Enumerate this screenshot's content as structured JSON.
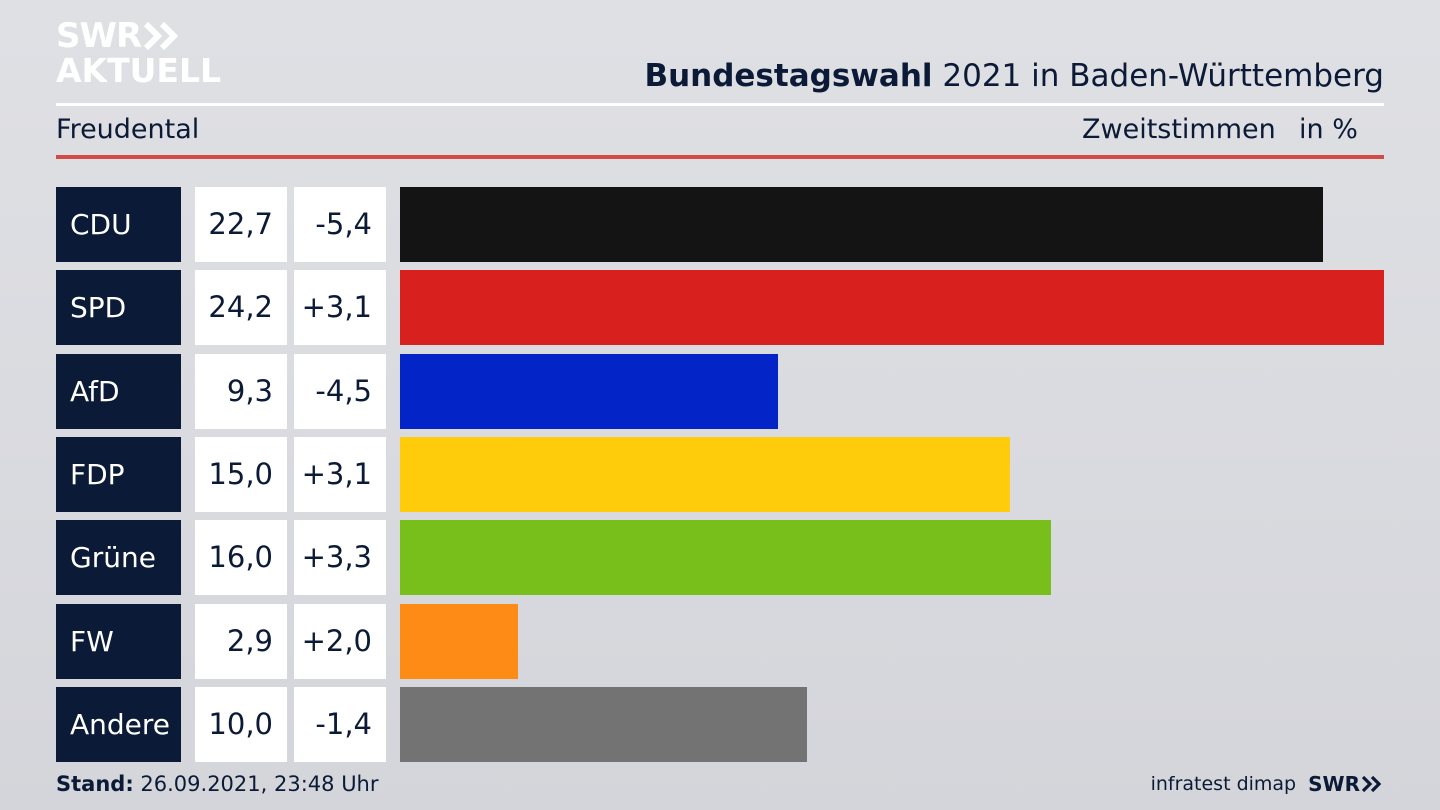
{
  "logo": {
    "line1": "SWR",
    "line2": "AKTUELL",
    "icon": "double-chevron-right-icon"
  },
  "header": {
    "title_bold": "Bundestagswahl",
    "title_rest": "2021 in Baden-Württemberg",
    "region": "Freudental",
    "vote_type": "Zweitstimmen",
    "unit": "in %"
  },
  "colors": {
    "navy": "#0b1a36",
    "accent_red_rule": "#d24b46"
  },
  "chart_data": {
    "type": "bar",
    "orientation": "horizontal",
    "categories": [
      "CDU",
      "SPD",
      "AfD",
      "FDP",
      "Grüne",
      "FW",
      "Andere"
    ],
    "values": [
      22.7,
      24.2,
      9.3,
      15.0,
      16.0,
      2.9,
      10.0
    ],
    "value_labels": [
      "22,7",
      "24,2",
      "9,3",
      "15,0",
      "16,0",
      "2,9",
      "10,0"
    ],
    "diff_labels": [
      "-5,4",
      "+3,1",
      "-4,5",
      "+3,1",
      "+3,3",
      "+2,0",
      "-1,4"
    ],
    "diffs": [
      -5.4,
      3.1,
      -4.5,
      3.1,
      3.3,
      2.0,
      -1.4
    ],
    "colors": [
      "#141414",
      "#d8201f",
      "#0324c6",
      "#fecc0a",
      "#79bf1b",
      "#fd8b15",
      "#737373"
    ],
    "xlim": [
      0,
      24.2
    ],
    "grid": false,
    "legend": "none"
  },
  "footer": {
    "stand_label": "Stand:",
    "stand_value": "26.09.2021, 23:48 Uhr",
    "source": "infratest dimap",
    "brand": "SWR"
  }
}
